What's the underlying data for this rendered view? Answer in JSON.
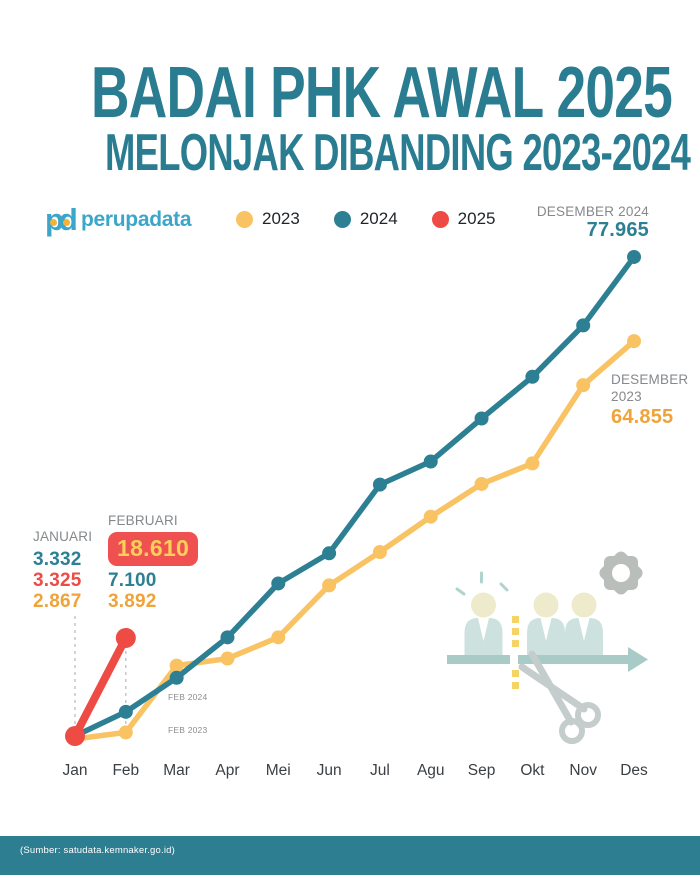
{
  "title": {
    "line1": "BADAI PHK AWAL 2025",
    "line2": "MELONJAK DIBANDING 2023-2024"
  },
  "logo": {
    "mark": "pd",
    "brand": "perupadata"
  },
  "legend": [
    {
      "label": "2023",
      "color": "#F9C364"
    },
    {
      "label": "2024",
      "color": "#2D7F93"
    },
    {
      "label": "2025",
      "color": "#EE4B45"
    }
  ],
  "annotations": {
    "dec2024_label": "DESEMBER 2024",
    "dec2024_value": "77.965",
    "dec2023_label_line1": "DESEMBER",
    "dec2023_label_line2": "2023",
    "dec2023_value": "64.855",
    "jan_label": "JANUARI",
    "jan_2024": "3.332",
    "jan_2025": "3.325",
    "jan_2023": "2.867",
    "feb_label": "FEBRUARI",
    "feb_2025": "18.610",
    "feb_2024": "7.100",
    "feb_2023": "3.892",
    "feb2024_marker": "FEB 2024",
    "feb2023_marker": "FEB 2023"
  },
  "chart_data": {
    "type": "line",
    "title": "BADAI PHK AWAL 2025 MELONJAK DIBANDING 2023-2024",
    "x": [
      "Jan",
      "Feb",
      "Mar",
      "Apr",
      "Mei",
      "Jun",
      "Jul",
      "Agu",
      "Sep",
      "Okt",
      "Nov",
      "Des"
    ],
    "series": [
      {
        "name": "2023",
        "color": "#F9C364",
        "line_width": 5.5,
        "point_radius": 7,
        "values": [
          2867,
          3892,
          14300,
          15400,
          18700,
          26800,
          32000,
          37500,
          42600,
          45800,
          58000,
          64855
        ]
      },
      {
        "name": "2024",
        "color": "#2D7F93",
        "line_width": 5.5,
        "point_radius": 7,
        "values": [
          3332,
          7100,
          12400,
          18700,
          27100,
          31800,
          42500,
          46100,
          52800,
          59300,
          67300,
          77965
        ]
      },
      {
        "name": "2025",
        "color": "#EE4B45",
        "line_width": 8,
        "point_radius": 10,
        "values": [
          3325,
          18610
        ]
      }
    ],
    "labeled_points": {
      "jan_2023": 2867,
      "jan_2024": 3332,
      "jan_2025": 3325,
      "feb_2023": 3892,
      "feb_2024": 7100,
      "feb_2025": 18610,
      "des_2023": 64855,
      "des_2024": 77965
    },
    "ylim": [
      0,
      80000
    ],
    "grid": false,
    "legend_position": "top"
  },
  "illustration": {
    "icons": [
      "workers-icon",
      "arrow-icon",
      "cut-line-icon",
      "scissors-icon",
      "gear-icon",
      "shock-lines-icon"
    ]
  },
  "footer": {
    "source": "(Sumber: satudata.kemnaker.go.id)"
  },
  "colors": {
    "title": "#2A7C91",
    "series_2023": "#F9C364",
    "series_2024": "#2D7F93",
    "series_2025": "#EE4B45",
    "orange_value_text": "#EFA338",
    "badge_bg": "#EF5150",
    "badge_text": "#FBD05A",
    "gray_label": "#85898C",
    "footer_bg": "#2E7E91",
    "background": "#FFFFFF"
  }
}
